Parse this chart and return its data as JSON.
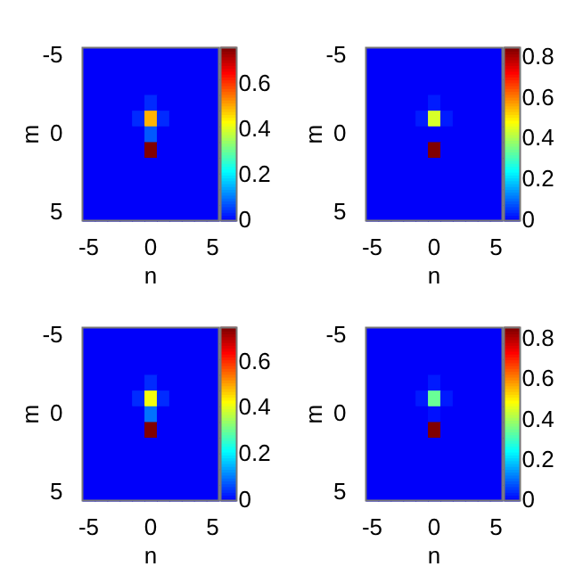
{
  "chart_data": [
    {
      "type": "heatmap",
      "xlabel": "n",
      "ylabel": "m",
      "categories": [
        "-5",
        null,
        null,
        null,
        null,
        "0",
        null,
        null,
        null,
        null,
        "5"
      ],
      "y_categories": [
        "-5",
        null,
        null,
        null,
        null,
        "0",
        null,
        null,
        null,
        null,
        "5"
      ],
      "clim": [
        0,
        0.76
      ],
      "cticks": [
        0,
        0.2,
        0.4,
        0.6
      ],
      "cells": [
        [
          0,
          0,
          0,
          0,
          0,
          0,
          0,
          0,
          0,
          0,
          0
        ],
        [
          0,
          0,
          0,
          0,
          0,
          0,
          0,
          0,
          0,
          0,
          0
        ],
        [
          0,
          0,
          0,
          0,
          0,
          0,
          0,
          0,
          0,
          0,
          0
        ],
        [
          0,
          0,
          0,
          0,
          0,
          0.04,
          0,
          0,
          0,
          0,
          0
        ],
        [
          0,
          0,
          0,
          0,
          0.04,
          0.5,
          0.04,
          0,
          0,
          0,
          0
        ],
        [
          0,
          0,
          0,
          0,
          0,
          0.08,
          0,
          0,
          0,
          0,
          0
        ],
        [
          0,
          0,
          0,
          0,
          0,
          0.76,
          0,
          0,
          0,
          0,
          0
        ],
        [
          0,
          0,
          0,
          0,
          0,
          0,
          0,
          0,
          0,
          0,
          0
        ],
        [
          0,
          0,
          0,
          0,
          0,
          0,
          0,
          0,
          0,
          0,
          0
        ],
        [
          0,
          0,
          0,
          0,
          0,
          0,
          0,
          0,
          0,
          0,
          0
        ],
        [
          0,
          0,
          0,
          0,
          0,
          0,
          0,
          0,
          0,
          0,
          0
        ]
      ]
    },
    {
      "type": "heatmap",
      "xlabel": "n",
      "ylabel": "m",
      "categories": [
        "-5",
        null,
        null,
        null,
        null,
        "0",
        null,
        null,
        null,
        null,
        "5"
      ],
      "y_categories": [
        "-5",
        null,
        null,
        null,
        null,
        "0",
        null,
        null,
        null,
        null,
        "5"
      ],
      "clim": [
        0,
        0.85
      ],
      "cticks": [
        0,
        0.2,
        0.4,
        0.6,
        0.8
      ],
      "cells": [
        [
          0,
          0,
          0,
          0,
          0,
          0,
          0,
          0,
          0,
          0,
          0
        ],
        [
          0,
          0,
          0,
          0,
          0,
          0,
          0,
          0,
          0,
          0,
          0
        ],
        [
          0,
          0,
          0,
          0,
          0,
          0,
          0,
          0,
          0,
          0,
          0
        ],
        [
          0,
          0,
          0,
          0,
          0,
          0.03,
          0,
          0,
          0,
          0,
          0
        ],
        [
          0,
          0,
          0,
          0,
          0.03,
          0.45,
          0.03,
          0,
          0,
          0,
          0
        ],
        [
          0,
          0,
          0,
          0,
          0,
          0,
          0,
          0,
          0,
          0,
          0
        ],
        [
          0,
          0,
          0,
          0,
          0,
          0.85,
          0,
          0,
          0,
          0,
          0
        ],
        [
          0,
          0,
          0,
          0,
          0,
          0,
          0,
          0,
          0,
          0,
          0
        ],
        [
          0,
          0,
          0,
          0,
          0,
          0,
          0,
          0,
          0,
          0,
          0
        ],
        [
          0,
          0,
          0,
          0,
          0,
          0,
          0,
          0,
          0,
          0,
          0
        ],
        [
          0,
          0,
          0,
          0,
          0,
          0,
          0,
          0,
          0,
          0,
          0
        ]
      ]
    },
    {
      "type": "heatmap",
      "xlabel": "n",
      "ylabel": "m",
      "categories": [
        "-5",
        null,
        null,
        null,
        null,
        "0",
        null,
        null,
        null,
        null,
        "5"
      ],
      "y_categories": [
        "-5",
        null,
        null,
        null,
        null,
        "0",
        null,
        null,
        null,
        null,
        "5"
      ],
      "clim": [
        0,
        0.75
      ],
      "cticks": [
        0,
        0.2,
        0.4,
        0.6
      ],
      "cells": [
        [
          0,
          0,
          0,
          0,
          0,
          0,
          0,
          0,
          0,
          0,
          0
        ],
        [
          0,
          0,
          0,
          0,
          0,
          0,
          0,
          0,
          0,
          0,
          0
        ],
        [
          0,
          0,
          0,
          0,
          0,
          0,
          0,
          0,
          0,
          0,
          0
        ],
        [
          0,
          0,
          0,
          0,
          0,
          0.04,
          0,
          0,
          0,
          0,
          0
        ],
        [
          0,
          0,
          0,
          0,
          0.04,
          0.42,
          0.04,
          0,
          0,
          0,
          0
        ],
        [
          0,
          0,
          0,
          0,
          0,
          0.1,
          0,
          0,
          0,
          0,
          0
        ],
        [
          0,
          0,
          0,
          0,
          0,
          0.75,
          0,
          0,
          0,
          0,
          0
        ],
        [
          0,
          0,
          0,
          0,
          0,
          0,
          0,
          0,
          0,
          0,
          0
        ],
        [
          0,
          0,
          0,
          0,
          0,
          0,
          0,
          0,
          0,
          0,
          0
        ],
        [
          0,
          0,
          0,
          0,
          0,
          0,
          0,
          0,
          0,
          0,
          0
        ],
        [
          0,
          0,
          0,
          0,
          0,
          0,
          0,
          0,
          0,
          0,
          0
        ]
      ]
    },
    {
      "type": "heatmap",
      "xlabel": "n",
      "ylabel": "m",
      "categories": [
        "-5",
        null,
        null,
        null,
        null,
        "0",
        null,
        null,
        null,
        null,
        "5"
      ],
      "y_categories": [
        "-5",
        null,
        null,
        null,
        null,
        "0",
        null,
        null,
        null,
        null,
        "5"
      ],
      "clim": [
        0,
        0.86
      ],
      "cticks": [
        0,
        0.2,
        0.4,
        0.6,
        0.8
      ],
      "cells": [
        [
          0,
          0,
          0,
          0,
          0,
          0,
          0,
          0,
          0,
          0,
          0
        ],
        [
          0,
          0,
          0,
          0,
          0,
          0,
          0,
          0,
          0,
          0,
          0
        ],
        [
          0,
          0,
          0,
          0,
          0,
          0,
          0,
          0,
          0,
          0,
          0
        ],
        [
          0,
          0,
          0,
          0,
          0,
          0.03,
          0,
          0,
          0,
          0,
          0
        ],
        [
          0,
          0,
          0,
          0,
          0.03,
          0.35,
          0.03,
          0,
          0,
          0,
          0
        ],
        [
          0,
          0,
          0,
          0,
          0,
          0.02,
          0,
          0,
          0,
          0,
          0
        ],
        [
          0,
          0,
          0,
          0,
          0,
          0.86,
          0,
          0,
          0,
          0,
          0
        ],
        [
          0,
          0,
          0,
          0,
          0,
          0,
          0,
          0,
          0,
          0,
          0
        ],
        [
          0,
          0,
          0,
          0,
          0,
          0,
          0,
          0,
          0,
          0,
          0
        ],
        [
          0,
          0,
          0,
          0,
          0,
          0,
          0,
          0,
          0,
          0,
          0
        ],
        [
          0,
          0,
          0,
          0,
          0,
          0,
          0,
          0,
          0,
          0,
          0
        ]
      ]
    }
  ]
}
